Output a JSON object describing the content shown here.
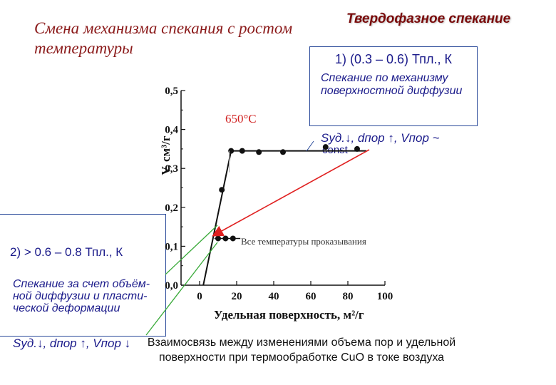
{
  "title_left": "Смена механизма спекания с ростом температуры",
  "title_right": "Твердофазное спекание",
  "box1": {
    "range": "1) (0.3 – 0.6) Тпл., К",
    "mechanism": "Спекание по механизму поверхностной диффузии",
    "relation": "Sуд.↓, dпор ↑, Vпор ~",
    "const": "const"
  },
  "box2": {
    "range": "2) > 0.6 – 0.8 Тпл., К",
    "mechanism": "Спекание за счет объём-ной диффузии и пласти-ческой деформации",
    "relation": "Sуд.↓, dпор ↑, Vпор ↓"
  },
  "caption": "Взаимосвязь между изменениями объема пор и удельной поверхности при термообработке CuO в токе воздуха",
  "chart_data": {
    "type": "line",
    "xlabel": "Удельная поверхность, м²/г",
    "ylabel": "V, cм³/г",
    "xticks": [
      "0",
      "20",
      "40",
      "60",
      "80",
      "100"
    ],
    "yticks": [
      "0,0",
      "0,1",
      "0,2",
      "0,3",
      "0,4",
      "0,5"
    ],
    "xlim": [
      -10,
      100
    ],
    "ylim": [
      0,
      0.5
    ],
    "annotation_temp": "650°C",
    "annotation_low": "Все температуры проказывания",
    "points": [
      {
        "x": 12,
        "y": 0.245
      },
      {
        "x": 17,
        "y": 0.345
      },
      {
        "x": 23,
        "y": 0.345
      },
      {
        "x": 32,
        "y": 0.342
      },
      {
        "x": 45,
        "y": 0.342
      },
      {
        "x": 68,
        "y": 0.355
      },
      {
        "x": 85,
        "y": 0.35
      },
      {
        "x": 10,
        "y": 0.12
      },
      {
        "x": 14,
        "y": 0.12
      },
      {
        "x": 18,
        "y": 0.12
      }
    ],
    "fit_line": [
      {
        "x": 2,
        "y": 0.0
      },
      {
        "x": 17,
        "y": 0.345
      },
      {
        "x": 90,
        "y": 0.345
      }
    ],
    "colors": {
      "box_border": "#2a4a9a",
      "text_blue": "#1a1a8a",
      "title_red": "#8b1a1a",
      "arrow_red": "#e02020",
      "arrow_green": "#3aaa3a"
    }
  }
}
